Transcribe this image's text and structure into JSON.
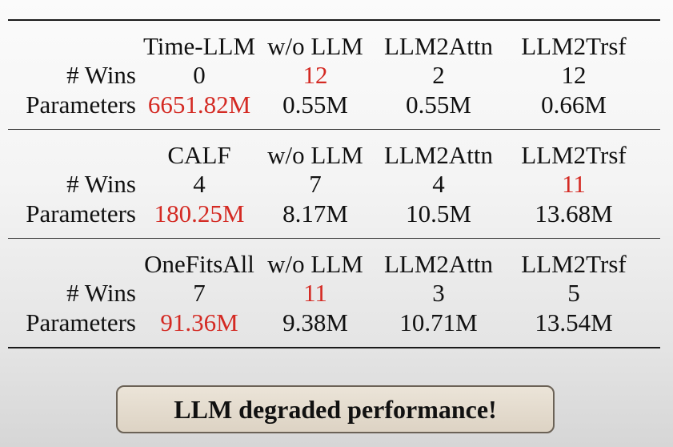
{
  "row_labels": {
    "wins": "# Wins",
    "parameters": "Parameters"
  },
  "groups": [
    {
      "columns": [
        "Time-LLM",
        "w/o LLM",
        "LLM2Attn",
        "LLM2Trsf"
      ],
      "wins": [
        "0",
        "12",
        "2",
        "12"
      ],
      "parameters": [
        "6651.82M",
        "0.55M",
        "0.55M",
        "0.66M"
      ],
      "highlight_wins_index": 1,
      "highlight_params_index": 0
    },
    {
      "columns": [
        "CALF",
        "w/o LLM",
        "LLM2Attn",
        "LLM2Trsf"
      ],
      "wins": [
        "4",
        "7",
        "4",
        "11"
      ],
      "parameters": [
        "180.25M",
        "8.17M",
        "10.5M",
        "13.68M"
      ],
      "highlight_wins_index": 3,
      "highlight_params_index": 0
    },
    {
      "columns": [
        "OneFitsAll",
        "w/o LLM",
        "LLM2Attn",
        "LLM2Trsf"
      ],
      "wins": [
        "7",
        "11",
        "3",
        "5"
      ],
      "parameters": [
        "91.36M",
        "9.38M",
        "10.71M",
        "13.54M"
      ],
      "highlight_wins_index": 1,
      "highlight_params_index": 0
    }
  ],
  "highlight_color": "#d42a23",
  "banner": {
    "text": "LLM degraded performance!"
  }
}
